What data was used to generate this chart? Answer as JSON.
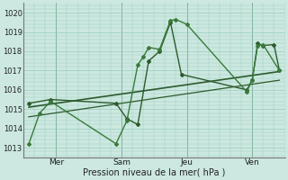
{
  "xlabel": "Pression niveau de la mer( hPa )",
  "ylim": [
    1012.5,
    1020.5
  ],
  "yticks": [
    1013,
    1014,
    1015,
    1016,
    1017,
    1018,
    1019,
    1020
  ],
  "bg_color": "#cce8e0",
  "grid_color": "#99ccbb",
  "line_color": "#2d5a2d",
  "line_color2": "#3a7a3a",
  "day_labels": [
    "Mer",
    "Sam",
    "Jeu",
    "Ven"
  ],
  "day_positions": [
    6,
    18,
    30,
    42
  ],
  "xlim": [
    0,
    48
  ],
  "line1": {
    "x": [
      1,
      3,
      5,
      17,
      19,
      21,
      22,
      23,
      25,
      27,
      28,
      30,
      41,
      42,
      43,
      44,
      47
    ],
    "y": [
      1013.2,
      1014.8,
      1015.4,
      1013.2,
      1014.4,
      1017.3,
      1017.7,
      1018.2,
      1018.1,
      1019.6,
      1019.65,
      1019.4,
      1015.9,
      1016.5,
      1018.3,
      1018.35,
      1017.0
    ]
  },
  "line2": {
    "x": [
      1,
      5,
      17,
      19,
      21,
      23,
      25,
      27,
      29,
      41,
      42,
      43,
      44,
      46,
      47
    ],
    "y": [
      1015.3,
      1015.5,
      1015.3,
      1014.5,
      1014.2,
      1017.5,
      1018.0,
      1019.5,
      1016.8,
      1016.0,
      1016.5,
      1018.4,
      1018.3,
      1018.35,
      1017.0
    ]
  },
  "trend1": {
    "x": [
      1,
      47
    ],
    "y": [
      1015.1,
      1016.95
    ]
  },
  "trend2": {
    "x": [
      1,
      47
    ],
    "y": [
      1014.6,
      1016.5
    ]
  },
  "markersize": 2.0,
  "lw": 1.0,
  "lw_trend": 1.2
}
